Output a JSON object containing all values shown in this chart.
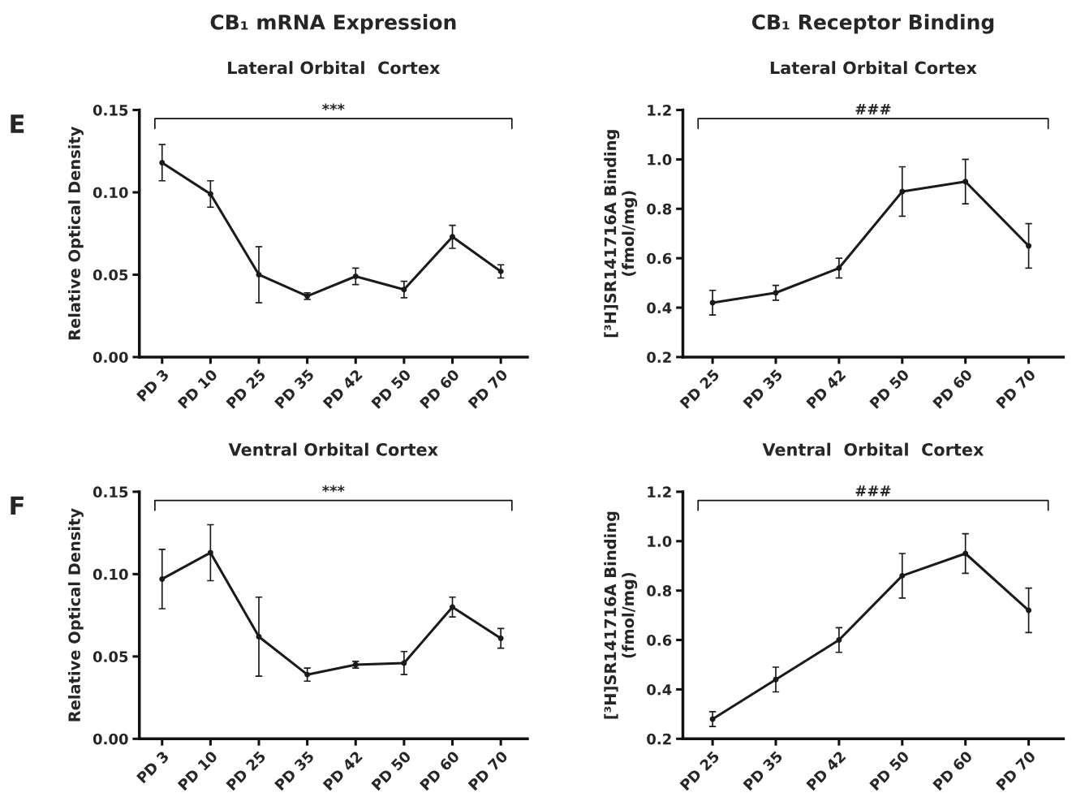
{
  "chart_data": [
    {
      "type": "line",
      "title": "CB₁ mRNA Expression",
      "subtitle": "Lateral Orbital  Cortex",
      "ylabel": "Relative Optical Density",
      "annotations": [
        "E",
        "***"
      ],
      "categories": [
        "PD 3",
        "PD 10",
        "PD 25",
        "PD 35",
        "PD 42",
        "PD 50",
        "PD 60",
        "PD 70"
      ],
      "series": [
        {
          "color": "#1a1a1a",
          "values": [
            0.118,
            0.099,
            0.05,
            0.037,
            0.049,
            0.041,
            0.073,
            0.052
          ],
          "errors": [
            0.011,
            0.008,
            0.017,
            0.002,
            0.005,
            0.005,
            0.007,
            0.004
          ]
        }
      ],
      "ylim": [
        0,
        0.15
      ],
      "yticks": [
        {
          "value": 0,
          "label": "0.00"
        },
        {
          "value": 0.05,
          "label": "0.05"
        },
        {
          "value": 0.1,
          "label": "0.10"
        },
        {
          "value": 0.15,
          "label": "0.15"
        }
      ],
      "marker": "circle",
      "line_style": "solid",
      "grid": false,
      "legend": false
    },
    {
      "type": "line",
      "title": "CB₁ Receptor Binding",
      "subtitle": "Lateral Orbital Cortex",
      "ylabel": "[³H]SR141716A Binding\n(fmol/mg)",
      "annotations": [
        "###"
      ],
      "categories": [
        "PD 25",
        "PD 35",
        "PD 42",
        "PD 50",
        "PD 60",
        "PD 70"
      ],
      "series": [
        {
          "color": "#1a1a1a",
          "values": [
            0.42,
            0.46,
            0.56,
            0.87,
            0.91,
            0.65
          ],
          "errors": [
            0.05,
            0.03,
            0.04,
            0.1,
            0.09,
            0.09
          ]
        }
      ],
      "ylim": [
        0.2,
        1.2
      ],
      "yticks": [
        {
          "value": 0.2,
          "label": "0.2"
        },
        {
          "value": 0.4,
          "label": "0.4"
        },
        {
          "value": 0.6,
          "label": "0.6"
        },
        {
          "value": 0.8,
          "label": "0.8"
        },
        {
          "value": 1.0,
          "label": "1.0"
        },
        {
          "value": 1.2,
          "label": "1.2"
        }
      ],
      "marker": "circle",
      "line_style": "solid",
      "grid": false,
      "legend": false
    },
    {
      "type": "line",
      "subtitle": "Ventral Orbital Cortex",
      "ylabel": "Relative Optical Density",
      "annotations": [
        "F",
        "***"
      ],
      "categories": [
        "PD 3",
        "PD 10",
        "PD 25",
        "PD 35",
        "PD 42",
        "PD 50",
        "PD 60",
        "PD 70"
      ],
      "series": [
        {
          "color": "#1a1a1a",
          "values": [
            0.097,
            0.113,
            0.062,
            0.039,
            0.045,
            0.046,
            0.08,
            0.061
          ],
          "errors": [
            0.018,
            0.017,
            0.024,
            0.004,
            0.002,
            0.007,
            0.006,
            0.006
          ]
        }
      ],
      "ylim": [
        0,
        0.15
      ],
      "yticks": [
        {
          "value": 0,
          "label": "0.00"
        },
        {
          "value": 0.05,
          "label": "0.05"
        },
        {
          "value": 0.1,
          "label": "0.10"
        },
        {
          "value": 0.15,
          "label": "0.15"
        }
      ],
      "marker": "circle",
      "line_style": "solid",
      "grid": false,
      "legend": false
    },
    {
      "type": "line",
      "subtitle": "Ventral  Orbital  Cortex",
      "ylabel": "[³H]SR141716A Binding\n(fmol/mg)",
      "annotations": [
        "###"
      ],
      "categories": [
        "PD 25",
        "PD 35",
        "PD 42",
        "PD 50",
        "PD 60",
        "PD 70"
      ],
      "series": [
        {
          "color": "#1a1a1a",
          "values": [
            0.28,
            0.44,
            0.6,
            0.86,
            0.95,
            0.72
          ],
          "errors": [
            0.03,
            0.05,
            0.05,
            0.09,
            0.08,
            0.09
          ]
        }
      ],
      "ylim": [
        0.2,
        1.2
      ],
      "yticks": [
        {
          "value": 0.2,
          "label": "0.2"
        },
        {
          "value": 0.4,
          "label": "0.4"
        },
        {
          "value": 0.6,
          "label": "0.6"
        },
        {
          "value": 0.8,
          "label": "0.8"
        },
        {
          "value": 1.0,
          "label": "1.0"
        },
        {
          "value": 1.2,
          "label": "1.2"
        }
      ],
      "marker": "circle",
      "line_style": "solid",
      "grid": false,
      "legend": false
    }
  ]
}
